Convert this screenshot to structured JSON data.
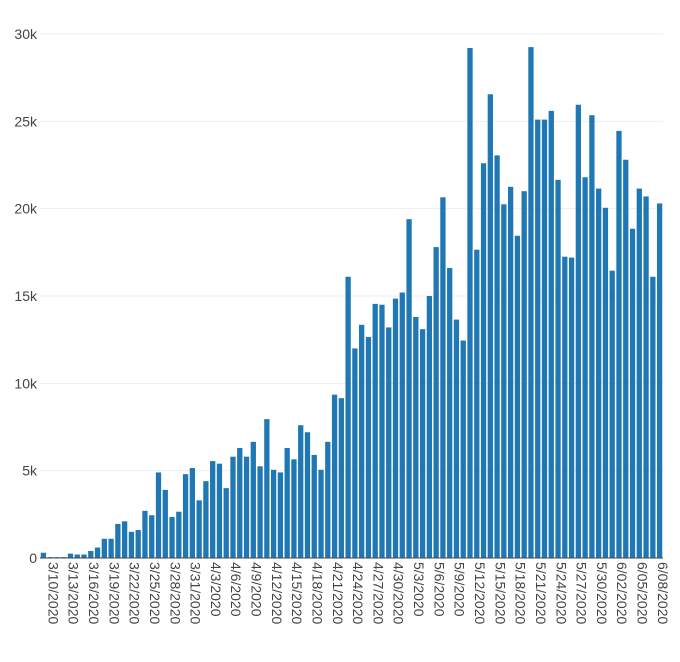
{
  "chart_data": {
    "type": "bar",
    "title": "",
    "xlabel": "",
    "ylabel": "",
    "ylim": [
      0,
      30000
    ],
    "grid": true,
    "bar_color": "#1f77b4",
    "y_tick_values": [
      0,
      5000,
      10000,
      15000,
      20000,
      25000,
      30000
    ],
    "y_tick_labels": [
      "0",
      "5k",
      "10k",
      "15k",
      "20k",
      "25k",
      "30k"
    ],
    "x_tick_labels": [
      "3/10/2020",
      "3/13/2020",
      "3/16/2020",
      "3/19/2020",
      "3/22/2020",
      "3/25/2020",
      "3/28/2020",
      "3/31/2020",
      "4/3/2020",
      "4/6/2020",
      "4/9/2020",
      "4/12/2020",
      "4/15/2020",
      "4/18/2020",
      "4/21/2020",
      "4/24/2020",
      "4/27/2020",
      "4/30/2020",
      "5/3/2020",
      "5/6/2020",
      "5/9/2020",
      "5/12/2020",
      "5/15/2020",
      "5/18/2020",
      "5/21/2020",
      "5/24/2020",
      "5/27/2020",
      "5/30/2020",
      "6/02/2020",
      "6/05/2020",
      "6/08/2020"
    ],
    "tick_every": 3,
    "values": [
      300,
      50,
      50,
      50,
      250,
      200,
      200,
      400,
      600,
      1100,
      1100,
      1950,
      2100,
      1500,
      1600,
      2700,
      2450,
      4900,
      3900,
      2350,
      2650,
      4800,
      5150,
      3300,
      4400,
      5550,
      5400,
      4000,
      5800,
      6300,
      5800,
      6650,
      5250,
      7950,
      5050,
      4900,
      6300,
      5650,
      7600,
      7200,
      5900,
      5050,
      6650,
      9350,
      9150,
      16100,
      12000,
      13350,
      12650,
      14550,
      14500,
      13200,
      14850,
      15200,
      19400,
      13800,
      13100,
      15000,
      17800,
      20650,
      16600,
      13650,
      12450,
      29200,
      17650,
      22600,
      26550,
      23050,
      20250,
      21250,
      18450,
      21000,
      29250,
      25100,
      25100,
      25600,
      21650,
      17250,
      17200,
      25950,
      21800,
      25350,
      21150,
      20050,
      16450,
      24450,
      22800,
      18850,
      21150,
      20700,
      16100,
      20300
    ]
  }
}
